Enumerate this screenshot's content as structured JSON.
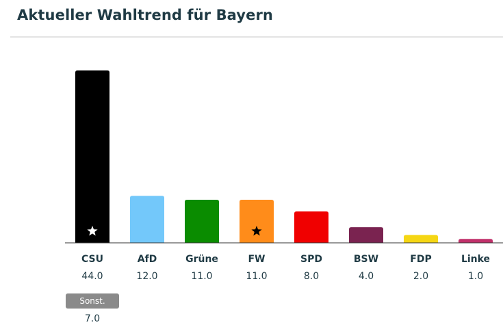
{
  "header": {
    "title": "Aktueller Wahltrend für Bayern"
  },
  "chart_data": {
    "type": "bar",
    "title": "Aktueller Wahltrend für Bayern",
    "categories": [
      "CSU",
      "AfD",
      "Grüne",
      "FW",
      "SPD",
      "BSW",
      "FDP",
      "Linke"
    ],
    "values": [
      44.0,
      12.0,
      11.0,
      11.0,
      8.0,
      4.0,
      2.0,
      1.0
    ],
    "value_labels": [
      "44.0",
      "12.0",
      "11.0",
      "11.0",
      "8.0",
      "4.0",
      "2.0",
      "1.0"
    ],
    "colors": [
      "#000000",
      "#73c8fa",
      "#0a8c00",
      "#ff8c1a",
      "#f00000",
      "#7a2350",
      "#f5d614",
      "#c0306a"
    ],
    "star_marked": [
      "CSU",
      "FW"
    ],
    "star_icon": "star-icon",
    "ylim": [
      0,
      44
    ],
    "xlabel": "",
    "ylabel": "",
    "grid": false,
    "other": {
      "label": "Sonst.",
      "value": 7.0,
      "value_label": "7.0"
    }
  }
}
